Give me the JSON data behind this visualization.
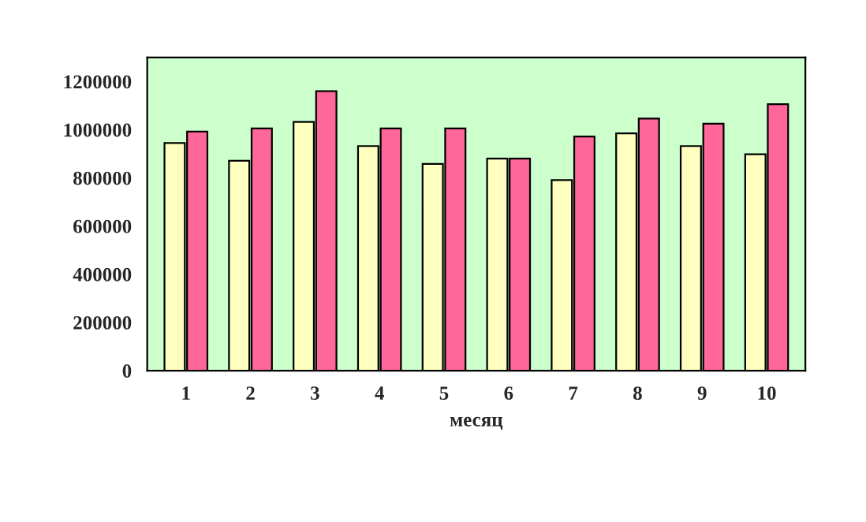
{
  "chart_data": {
    "type": "bar",
    "xlabel": "месяц",
    "categories": [
      "1",
      "2",
      "3",
      "4",
      "5",
      "6",
      "7",
      "8",
      "9",
      "10"
    ],
    "series": [
      {
        "color": "#ffffc0",
        "values": [
          945000,
          871000,
          1032000,
          932000,
          858000,
          880000,
          791000,
          985000,
          932000,
          898000
        ]
      },
      {
        "color": "#ff6699",
        "values": [
          992000,
          1005000,
          1160000,
          1005000,
          1005000,
          880000,
          972000,
          1046000,
          1025000,
          1106000
        ]
      }
    ],
    "ylim": [
      0,
      1300000
    ],
    "yticks": [
      0,
      200000,
      400000,
      600000,
      800000,
      1000000,
      1200000
    ],
    "grid": false,
    "legend": false
  }
}
